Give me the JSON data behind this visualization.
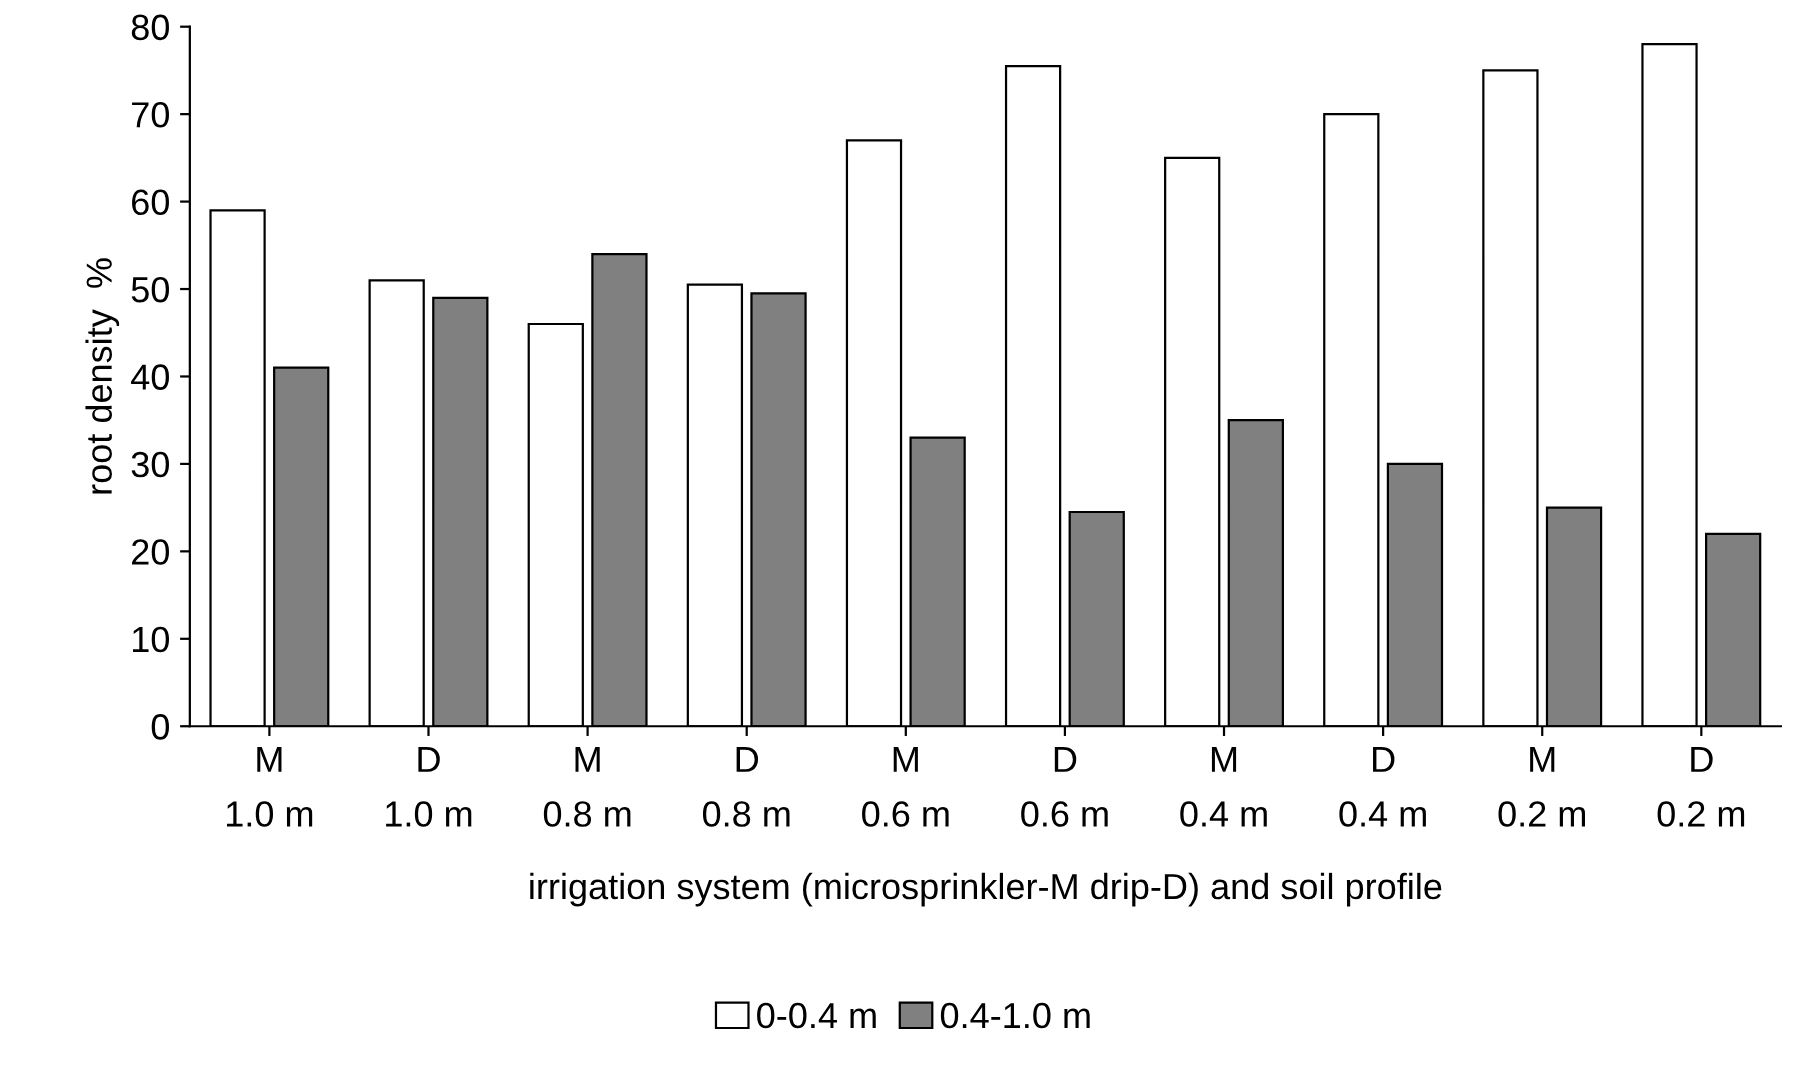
{
  "chart_data": {
    "type": "bar",
    "xlabel": "irrigation system (microsprinkler-M drip-D) and soil profile",
    "ylabel": "root density  %",
    "categories": [
      "M\n1.0 m",
      "D\n1.0 m",
      "M\n0.8 m",
      "D\n0.8 m",
      "M\n0.6 m",
      "D\n0.6 m",
      "M\n0.4 m",
      "D\n0.4 m",
      "M\n0.2 m",
      "D\n0.2 m"
    ],
    "series": [
      {
        "name": "0-0.4 m",
        "color": "#ffffff",
        "values": [
          59,
          51,
          46,
          50.5,
          67,
          75.5,
          65,
          70,
          75,
          78
        ]
      },
      {
        "name": "0.4-1.0 m",
        "color": "#808080",
        "values": [
          41,
          49,
          54,
          49.5,
          33,
          24.5,
          35,
          30,
          25,
          22
        ]
      }
    ],
    "ylim": [
      0,
      80
    ],
    "yticks": [
      0,
      10,
      20,
      30,
      40,
      50,
      60,
      70,
      80
    ],
    "grid": false,
    "legend": "bottom"
  }
}
